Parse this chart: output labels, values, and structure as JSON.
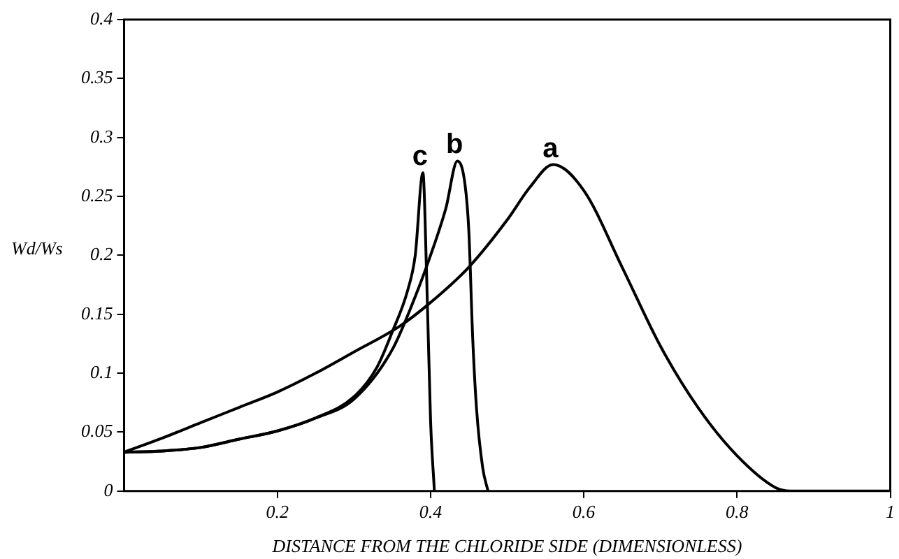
{
  "chart_data": {
    "type": "line",
    "xlabel": "DISTANCE FROM THE CHLORIDE SIDE (DIMENSIONLESS)",
    "ylabel": "Wd/Ws",
    "xlim": [
      0,
      1
    ],
    "ylim": [
      0,
      0.4
    ],
    "xticks": [
      0.2,
      0.4,
      0.6,
      0.8,
      1
    ],
    "yticks": [
      0,
      0.05,
      0.1,
      0.15,
      0.2,
      0.25,
      0.3,
      0.35,
      0.4
    ],
    "grid": false,
    "legend": false,
    "marker": "none",
    "line_style": "solid",
    "series": [
      {
        "name": "a",
        "color": "#000000",
        "x": [
          0,
          0.05,
          0.1,
          0.15,
          0.2,
          0.25,
          0.3,
          0.36,
          0.4,
          0.45,
          0.5,
          0.53,
          0.56,
          0.6,
          0.65,
          0.7,
          0.75,
          0.8,
          0.85,
          0.87,
          0.95,
          1
        ],
        "values": [
          0.033,
          0.045,
          0.058,
          0.071,
          0.084,
          0.1,
          0.118,
          0.14,
          0.16,
          0.19,
          0.23,
          0.258,
          0.277,
          0.255,
          0.19,
          0.123,
          0.07,
          0.03,
          0.003,
          0,
          0,
          0
        ]
      },
      {
        "name": "b",
        "color": "#000000",
        "x": [
          0,
          0.05,
          0.1,
          0.15,
          0.2,
          0.25,
          0.3,
          0.35,
          0.38,
          0.4,
          0.42,
          0.435,
          0.445,
          0.45,
          0.455,
          0.46,
          0.468,
          0.475
        ],
        "values": [
          0.033,
          0.034,
          0.037,
          0.044,
          0.051,
          0.062,
          0.078,
          0.12,
          0.165,
          0.2,
          0.24,
          0.28,
          0.26,
          0.22,
          0.13,
          0.07,
          0.02,
          0
        ]
      },
      {
        "name": "c",
        "color": "#000000",
        "x": [
          0,
          0.05,
          0.1,
          0.15,
          0.2,
          0.25,
          0.3,
          0.33,
          0.35,
          0.37,
          0.38,
          0.39,
          0.395,
          0.4,
          0.405
        ],
        "values": [
          0.033,
          0.034,
          0.037,
          0.044,
          0.051,
          0.062,
          0.08,
          0.105,
          0.135,
          0.17,
          0.2,
          0.27,
          0.18,
          0.06,
          0
        ]
      }
    ]
  }
}
